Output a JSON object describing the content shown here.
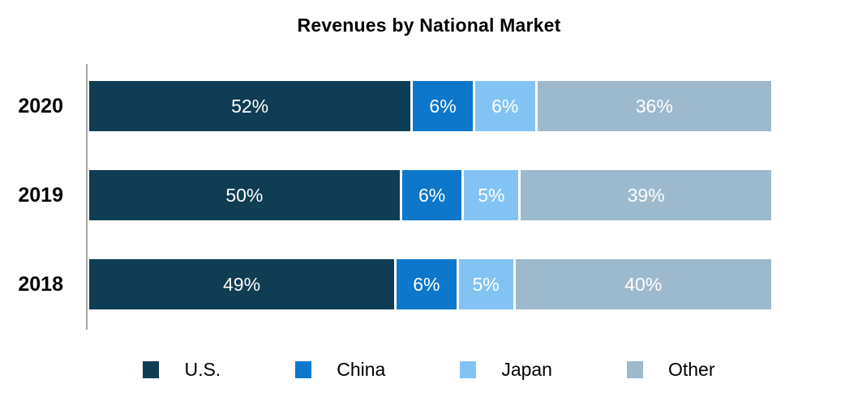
{
  "chart_data": {
    "type": "bar",
    "orientation": "horizontal",
    "stacked": true,
    "title": "Revenues by National Market",
    "categories": [
      "2020",
      "2019",
      "2018"
    ],
    "series": [
      {
        "name": "U.S.",
        "color": "#0e3d54",
        "values": [
          52,
          50,
          49
        ]
      },
      {
        "name": "China",
        "color": "#0d77cb",
        "values": [
          6,
          6,
          6
        ]
      },
      {
        "name": "Japan",
        "color": "#82c3f4",
        "values": [
          6,
          5,
          5
        ]
      },
      {
        "name": "Other",
        "color": "#9db9cd",
        "values": [
          36,
          39,
          40
        ]
      }
    ],
    "value_labels": [
      [
        "52%",
        "6%",
        "6%",
        "36%"
      ],
      [
        "50%",
        "6%",
        "5%",
        "39%"
      ],
      [
        "49%",
        "6%",
        "5%",
        "40%"
      ]
    ],
    "xlim": [
      0,
      100
    ],
    "grid": false,
    "legend_position": "bottom",
    "axis_color": "#a6a6a6",
    "bar_label_color": "#ffffff"
  }
}
